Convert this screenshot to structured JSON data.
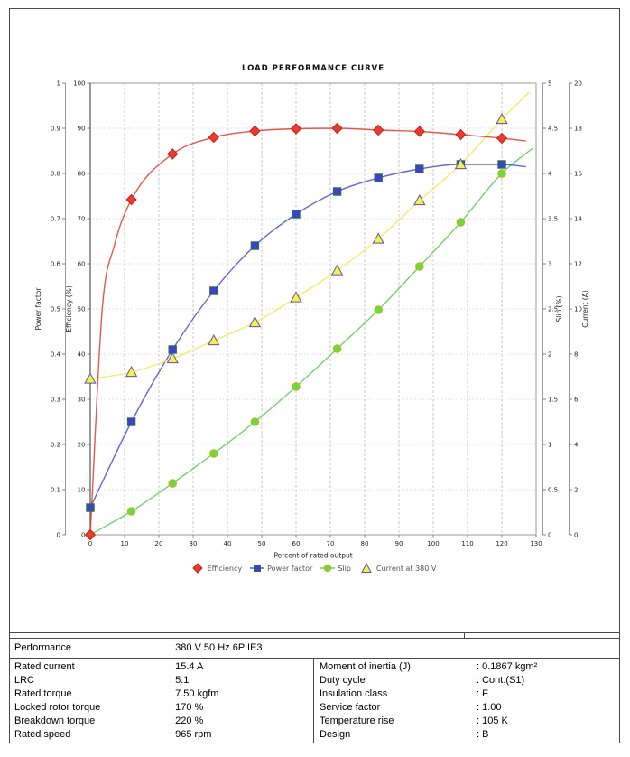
{
  "chart_data": {
    "type": "line",
    "title": "LOAD PERFORMANCE CURVE",
    "x_axis": {
      "title": "Percent of rated output",
      "min": 0,
      "max": 130,
      "step": 10,
      "grid": true
    },
    "axes": {
      "power_factor": {
        "title": "Power factor",
        "min": 0,
        "max": 1,
        "step": 0.1,
        "side": "left-outer"
      },
      "efficiency": {
        "title": "Efficiency (%)",
        "min": 0,
        "max": 100,
        "step": 10,
        "side": "left"
      },
      "slip": {
        "title": "Slip (%)",
        "min": 0,
        "max": 5,
        "step": 0.5,
        "side": "right"
      },
      "current": {
        "title": "Current (A)",
        "min": 0,
        "max": 20,
        "step": 2,
        "side": "right-outer"
      }
    },
    "load_points_pct": [
      0,
      12,
      24,
      36,
      48,
      60,
      72,
      84,
      96,
      108,
      120
    ],
    "series": [
      {
        "name": "Slip",
        "axis": "slip",
        "marker": "circle",
        "line_color": "#55d04a",
        "fill": "#66dd3e",
        "edge": "#d8a51e",
        "values": [
          0,
          0.26,
          0.57,
          0.9,
          1.25,
          1.64,
          2.06,
          2.49,
          2.97,
          3.46,
          4.0
        ],
        "curve_extension": {
          "x": 129,
          "y": 4.28
        }
      },
      {
        "name": "Power factor",
        "axis": "power_factor",
        "marker": "square",
        "line_color": "#4a49d4",
        "fill": "#3a43cc",
        "edge": "#2f6f2f",
        "values": [
          0.06,
          0.25,
          0.41,
          0.54,
          0.64,
          0.71,
          0.76,
          0.79,
          0.81,
          0.82,
          0.82
        ],
        "curve_extension": {
          "x": 127,
          "y": 0.815
        }
      },
      {
        "name": "Current at 380 V",
        "axis": "current",
        "marker": "triangle",
        "line_color": "#eeea50",
        "fill": "#f8f23e",
        "edge": "#5353c9",
        "values": [
          6.9,
          7.2,
          7.8,
          8.6,
          9.4,
          10.5,
          11.7,
          13.1,
          14.8,
          16.4,
          18.4
        ],
        "curve_extension": {
          "x": 128,
          "y": 19.6
        }
      },
      {
        "name": "Efficiency",
        "axis": "efficiency",
        "marker": "diamond",
        "line_color": "#e23a2e",
        "fill": "#ee3b32",
        "edge": "#c02418",
        "values": [
          0,
          74.2,
          84.3,
          88.0,
          89.4,
          89.9,
          90.0,
          89.6,
          89.3,
          88.6,
          87.8
        ],
        "curve_shape_points": [
          {
            "x": 3.5,
            "y": 50
          },
          {
            "x": 7,
            "y": 64
          }
        ],
        "curve_extension": {
          "x": 127,
          "y": 87.2
        }
      }
    ],
    "legend": [
      "Efficiency",
      "Power factor",
      "Slip",
      "Current at 380 V"
    ],
    "legend_position": "bottom"
  },
  "table": {
    "performance": {
      "label": "Performance",
      "value": ": 380 V 50 Hz 6P IE3"
    },
    "rows": [
      {
        "l1": "Rated current",
        "v1": ": 15.4 A",
        "l2": "Moment of inertia (J)",
        "v2": ": 0.1867 kgm²"
      },
      {
        "l1": "LRC",
        "v1": ": 5.1",
        "l2": "Duty cycle",
        "v2": ": Cont.(S1)"
      },
      {
        "l1": "Rated torque",
        "v1": ": 7.50 kgfm",
        "l2": "Insulation class",
        "v2": ": F"
      },
      {
        "l1": "Locked rotor torque",
        "v1": ": 170 %",
        "l2": "Service factor",
        "v2": ": 1.00"
      },
      {
        "l1": "Breakdown torque",
        "v1": ": 220 %",
        "l2": "Temperature rise",
        "v2": ": 105 K"
      },
      {
        "l1": "Rated speed",
        "v1": ": 965 rpm",
        "l2": "Design",
        "v2": ": B"
      }
    ]
  }
}
